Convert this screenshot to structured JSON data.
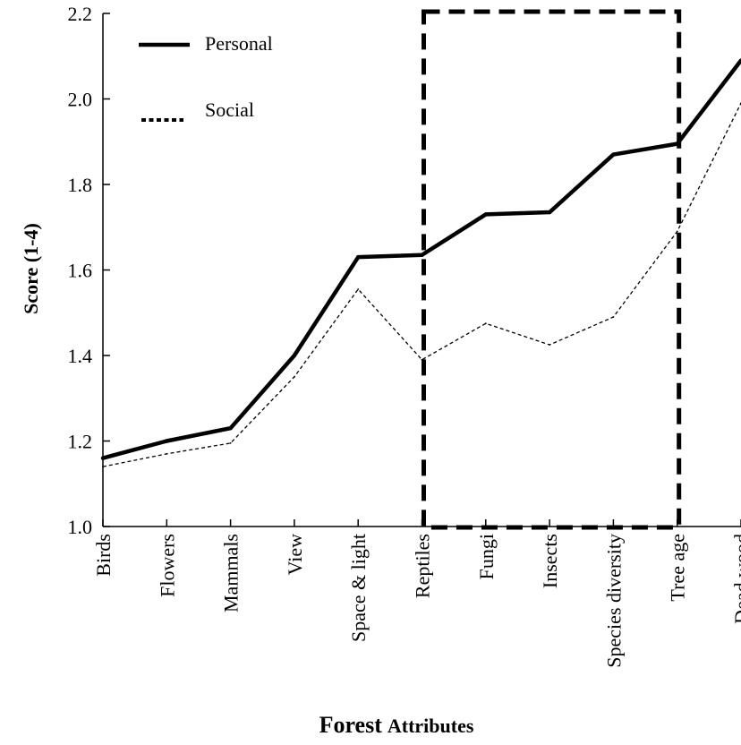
{
  "chart_data": {
    "type": "line",
    "title": "",
    "xlabel_main": "Forest",
    "xlabel_rest": "Attributes",
    "ylabel": "Score (1-4)",
    "categories": [
      "Birds",
      "Flowers",
      "Mammals",
      "View",
      "Space & light",
      "Reptiles",
      "Fungi",
      "Insects",
      "Species diversity",
      "Tree age",
      "Dead wood"
    ],
    "ylim": [
      1.0,
      2.2
    ],
    "yticks": [
      "1.0",
      "1.2",
      "1.4",
      "1.6",
      "1.8",
      "2.0",
      "2.2"
    ],
    "series": [
      {
        "name": "Personal",
        "style": "solid",
        "values": [
          1.16,
          1.2,
          1.23,
          1.4,
          1.63,
          1.635,
          1.73,
          1.735,
          1.87,
          1.895,
          2.09
        ]
      },
      {
        "name": "Social",
        "style": "dotted",
        "values": [
          1.14,
          1.17,
          1.195,
          1.35,
          1.555,
          1.39,
          1.475,
          1.425,
          1.49,
          1.69,
          1.99
        ]
      }
    ],
    "legend_position": "top-left",
    "highlight_box": {
      "from_category": "Reptiles",
      "to_category": "Tree age",
      "style": "dashed"
    },
    "grid": false,
    "colors": {
      "lines": "#000000",
      "background": "#ffffff"
    }
  }
}
